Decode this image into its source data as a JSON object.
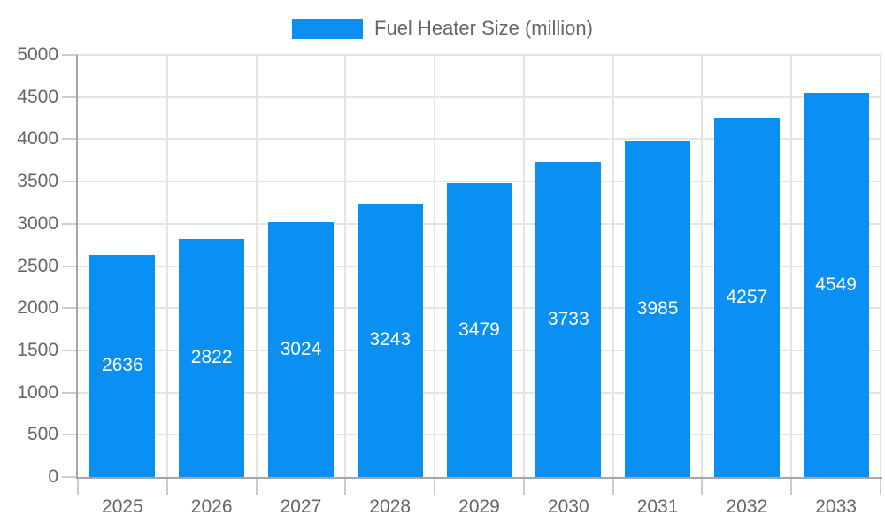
{
  "legend": {
    "label": "Fuel Heater Size (million)"
  },
  "colors": {
    "bar": "#0a90f3",
    "axis_line": "#a6a6a6",
    "grid_line": "#e4e4e4",
    "tick_mark": "#cccccc",
    "tick_label": "#666666",
    "bar_label": "#ffffff",
    "legend_text": "#666666",
    "background": "#ffffff"
  },
  "chart_data": {
    "type": "bar",
    "title": "",
    "categories": [
      "2025",
      "2026",
      "2027",
      "2028",
      "2029",
      "2030",
      "2031",
      "2032",
      "2033"
    ],
    "series": [
      {
        "name": "Fuel Heater Size (million)",
        "values": [
          2636,
          2822,
          3024,
          3243,
          3479,
          3733,
          3985,
          4257,
          4549
        ]
      }
    ],
    "xlabel": "",
    "ylabel": "",
    "ylim": [
      0,
      5000
    ],
    "y_tick_step": 500,
    "y_tick_labels": [
      "0",
      "500",
      "1000",
      "1500",
      "2000",
      "2500",
      "3000",
      "3500",
      "4000",
      "4500",
      "5000"
    ],
    "grid": true,
    "legend_position": "top",
    "bar_value_labels_visible": true,
    "bar_value_label_position": "center"
  }
}
